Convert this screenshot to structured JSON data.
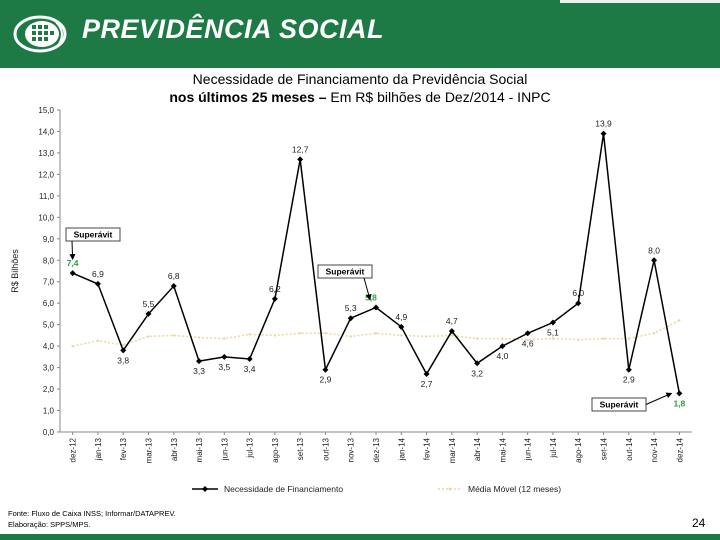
{
  "header": {
    "brand": "PREVIDÊNCIA SOCIAL"
  },
  "title": {
    "line1": "Necessidade de Financiamento da Previdência Social",
    "line2_bold": "nos últimos 25 meses – ",
    "line2_rest": "Em R$ bilhões de Dez/2014 - INPC"
  },
  "chart_data": {
    "type": "line",
    "ylabel": "R$ Bilhões",
    "ylim": [
      0,
      15
    ],
    "y_ticks": [
      "0,0",
      "1,0",
      "2,0",
      "3,0",
      "4,0",
      "5,0",
      "6,0",
      "7,0",
      "8,0",
      "9,0",
      "10,0",
      "11,0",
      "12,0",
      "13,0",
      "14,0",
      "15,0"
    ],
    "categories": [
      "dez-12",
      "jan-13",
      "fev-13",
      "mar-13",
      "abr-13",
      "mai-13",
      "jun-13",
      "jul-13",
      "ago-13",
      "set-13",
      "out-13",
      "nov-13",
      "dez-13",
      "jan-14",
      "fev-14",
      "mar-14",
      "abr-14",
      "mai-14",
      "jun-14",
      "jul-14",
      "ago-14",
      "set-14",
      "out-14",
      "nov-14",
      "dez-14"
    ],
    "series": [
      {
        "name": "Necessidade de Financiamento",
        "values": [
          7.4,
          6.9,
          3.8,
          5.5,
          6.8,
          3.3,
          3.5,
          3.4,
          6.2,
          12.7,
          2.9,
          5.3,
          5.8,
          4.9,
          2.7,
          4.7,
          3.2,
          4.0,
          4.6,
          5.1,
          6.0,
          13.9,
          2.9,
          8.0,
          1.8
        ],
        "labels": [
          "7,4",
          "6,9",
          "3,8",
          "5,5",
          "6,8",
          "3,3",
          "3,5",
          "3,4",
          "6,2",
          "12,7",
          "2,9",
          "5,3",
          "5,8",
          "4,9",
          "2,7",
          "4,7",
          "3,2",
          "4,0",
          "4,6",
          "5,1",
          "6,0",
          "13,9",
          "2,9",
          "8,0",
          "1,8"
        ],
        "color": "#000000"
      },
      {
        "name": "Média Móvel (12 meses)",
        "values": [
          4.0,
          4.25,
          4.05,
          4.45,
          4.5,
          4.4,
          4.35,
          4.55,
          4.5,
          4.6,
          4.6,
          4.45,
          4.6,
          4.5,
          4.45,
          4.5,
          4.35,
          4.35,
          4.3,
          4.35,
          4.3,
          4.35,
          4.35,
          4.6,
          5.2
        ],
        "color": "#e8d9a0"
      }
    ],
    "highlight_color": "#2e9e3f",
    "highlight_indices": [
      0,
      12,
      24
    ],
    "annotations": [
      {
        "text": "Superávit",
        "target_index": 0
      },
      {
        "text": "Superávit",
        "target_index": 12
      },
      {
        "text": "Superávit",
        "target_index": 24
      }
    ]
  },
  "footer": {
    "source_line1": "Fonte: Fluxo de Caixa INSS; Informar/DATAPREV.",
    "source_line2": "Elaboração: SPPS/MPS.",
    "page_number": "24"
  }
}
